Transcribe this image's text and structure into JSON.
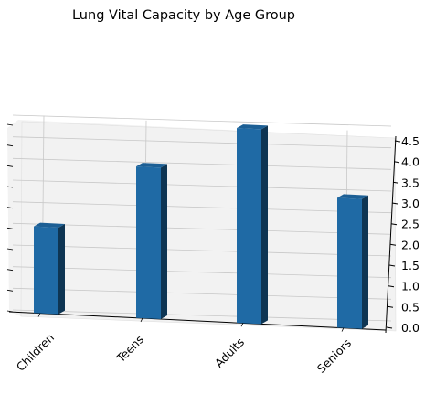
{
  "chart_data": {
    "type": "bar",
    "title": "Lung Vital Capacity by Age Group",
    "xlabel": "",
    "ylabel": "",
    "zlabel": "",
    "categories": [
      "Children",
      "Teens",
      "Adults",
      "Seniors"
    ],
    "values": [
      2.0,
      3.5,
      4.5,
      3.0
    ],
    "zlim": [
      0,
      4.5
    ],
    "zticks": [
      "0.0",
      "0.5",
      "1.0",
      "1.5",
      "2.0",
      "2.5",
      "3.0",
      "3.5",
      "4.0",
      "4.5"
    ],
    "grid": true,
    "projection": "3d",
    "colors": {
      "bar_front": "#1f6aa5",
      "bar_top": "#1c5f95",
      "bar_side": "#0e3553",
      "pane": "#f2f2f2",
      "grid": "#c8c8c8"
    }
  }
}
